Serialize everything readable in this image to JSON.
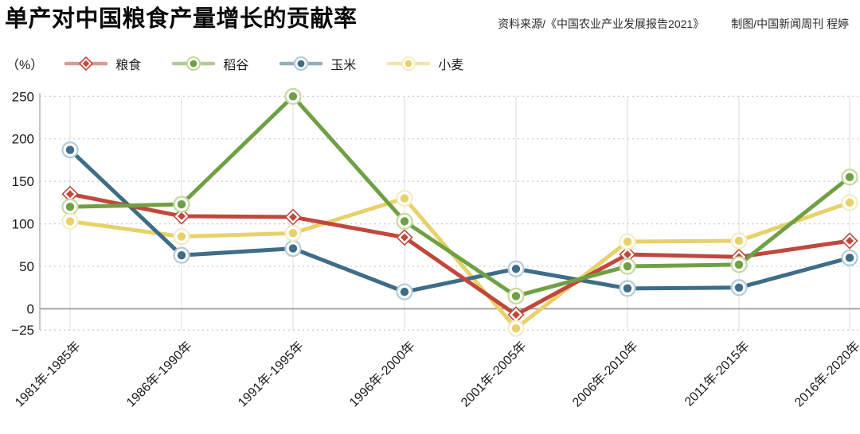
{
  "header": {
    "title": "单产对中国粮食产量增长的贡献率",
    "source": "资料来源/《中国农业产业发展报告2021》",
    "credit": "制图/中国新闻周刊 程婷"
  },
  "chart_data": {
    "type": "line",
    "title": "单产对中国粮食产量增长的贡献率",
    "unit_label": "（%）",
    "categories": [
      "1981年-1985年",
      "1986年-1990年",
      "1991年-1995年",
      "1996年-2000年",
      "2001年-2005年",
      "2006年-2010年",
      "2011年-2015年",
      "2016年-2020年"
    ],
    "series": [
      {
        "name": "粮食",
        "marker": "diamond",
        "color": "#c1473c",
        "halo": "#e2a89f",
        "values": [
          135,
          109,
          108,
          84,
          -7,
          64,
          61,
          80
        ]
      },
      {
        "name": "稻谷",
        "marker": "circle",
        "color": "#6fa144",
        "halo": "#c5da9e",
        "values": [
          120,
          123,
          250,
          103,
          15,
          50,
          52,
          155
        ]
      },
      {
        "name": "玉米",
        "marker": "circle",
        "color": "#3e6d87",
        "halo": "#b4ccd8",
        "values": [
          187,
          63,
          71,
          20,
          47,
          24,
          25,
          60
        ]
      },
      {
        "name": "小麦",
        "marker": "circle",
        "color": "#e7d16b",
        "halo": "#f4ecc4",
        "values": [
          103,
          85,
          89,
          130,
          -23,
          79,
          80,
          125
        ]
      }
    ],
    "yticks": [
      250,
      200,
      150,
      100,
      50,
      0,
      -25
    ],
    "ylim": [
      -25,
      250
    ],
    "grid": "dotted horizontal lines, light solid vertical category lines, solid zero line",
    "legend_position": "top-left"
  },
  "colors": {
    "grid_dotted": "#c9c9c9",
    "grid_vertical": "#dcdcdc",
    "zero_line": "#9c9c9c",
    "axis_line": "#b4b4b4",
    "tick_text": "#1c1c1c"
  }
}
